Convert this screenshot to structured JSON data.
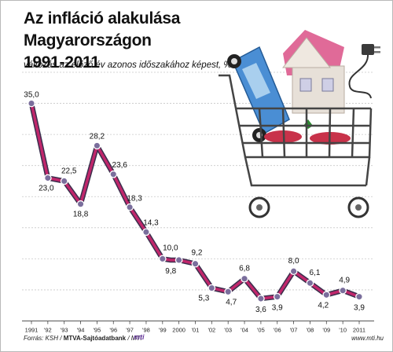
{
  "header": {
    "title_line1": "Az infláció alakulása Magyarországon",
    "title_line2": "1991-2011",
    "subtitle": "változás az előző év azonos időszakához képest, %"
  },
  "chart_data": {
    "type": "line",
    "title": "Az infláció alakulása Magyarországon 1991-2011",
    "subtitle": "változás az előző év azonos időszakához képest, %",
    "categories": [
      "1991",
      "'92",
      "'93",
      "'94",
      "'95",
      "'96",
      "'97",
      "'98",
      "'99",
      "2000",
      "'01",
      "'02",
      "'03",
      "'04",
      "'05",
      "'06",
      "'07",
      "'08",
      "'09",
      "'10",
      "2011"
    ],
    "series": [
      {
        "name": "",
        "points": [
          {
            "label": "1991",
            "values": [
              35.0
            ]
          },
          {
            "label": "'92",
            "values": [
              23.0
            ]
          },
          {
            "label": "'93",
            "values": [
              22.5
            ]
          },
          {
            "label": "'94",
            "values": [
              18.8
            ]
          },
          {
            "label": "'95",
            "values": [
              28.2
            ]
          },
          {
            "label": "'96",
            "values": [
              23.6
            ]
          },
          {
            "label": "'97",
            "values": [
              18.3
            ]
          },
          {
            "label": "'98",
            "values": [
              14.3
            ]
          },
          {
            "label": "'99",
            "values": [
              10.0,
              9.8
            ]
          },
          {
            "label": "2000",
            "values": [
              9.8
            ]
          },
          {
            "label": "'01",
            "values": [
              9.2
            ]
          },
          {
            "label": "'02",
            "values": [
              5.3
            ]
          },
          {
            "label": "'03",
            "values": [
              4.7
            ]
          },
          {
            "label": "'04",
            "values": [
              6.8
            ]
          },
          {
            "label": "'05",
            "values": [
              3.6
            ]
          },
          {
            "label": "'06",
            "values": [
              3.9
            ]
          },
          {
            "label": "'07",
            "values": [
              8.0
            ]
          },
          {
            "label": "'08",
            "values": [
              6.1
            ]
          },
          {
            "label": "'09",
            "values": [
              4.2
            ]
          },
          {
            "label": "'10",
            "values": [
              4.9
            ]
          },
          {
            "label": "2011",
            "values": [
              3.9
            ]
          }
        ],
        "value_labels": [
          "35,0",
          "23,0",
          "22,5",
          "18,8",
          "28,2",
          "23,6",
          "18,3",
          "14,3",
          "10,0",
          "9,8",
          "9,2",
          "5,3",
          "4,7",
          "6,8",
          "3,6",
          "3,9",
          "8,0",
          "6,1",
          "4,2",
          "4,9",
          "3,9"
        ]
      }
    ],
    "ylim": [
      0,
      40
    ],
    "grid": true,
    "line_color": "#c0266b",
    "marker_color": "#7a6e9c"
  },
  "footer": {
    "source_prefix": "Forrás: KSH / ",
    "source_bold": "MTVA-Sajtóadatbank",
    "source_suffix": " / MTI",
    "logo": "mti",
    "website": "www.mti.hu"
  }
}
